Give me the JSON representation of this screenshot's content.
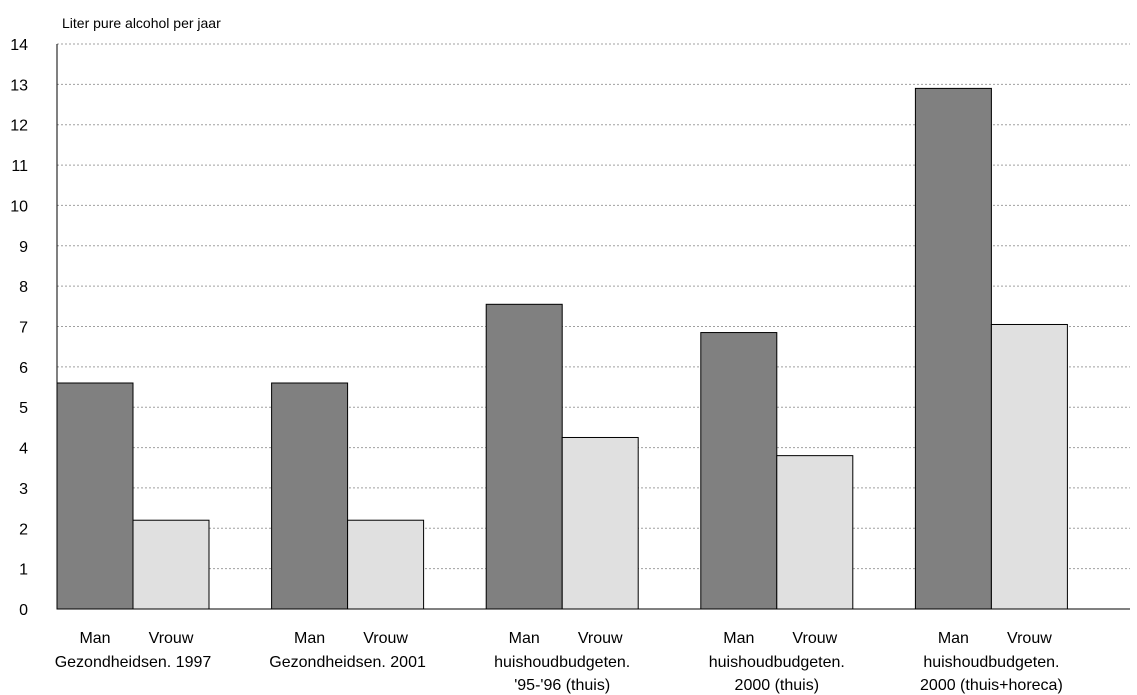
{
  "chart_data": {
    "type": "bar",
    "ylabel": "Liter pure alcohol per jaar",
    "ylim": [
      0,
      14
    ],
    "yticks": [
      "0",
      "1",
      "2",
      "3",
      "4",
      "5",
      "6",
      "7",
      "8",
      "9",
      "10",
      "11",
      "12",
      "13",
      "14"
    ],
    "grid": true,
    "series_labels": [
      "Man",
      "Vrouw"
    ],
    "colors": [
      "#808080",
      "#e0e0e0"
    ],
    "groups": [
      {
        "label_lines": [
          "Gezondheidsen. 1997"
        ],
        "values": [
          5.6,
          2.2
        ]
      },
      {
        "label_lines": [
          "Gezondheidsen. 2001"
        ],
        "values": [
          5.6,
          2.2
        ]
      },
      {
        "label_lines": [
          "huishoudbudgeten.",
          "'95-'96 (thuis)"
        ],
        "values": [
          7.55,
          4.25
        ]
      },
      {
        "label_lines": [
          "huishoudbudgeten.",
          "2000 (thuis)"
        ],
        "values": [
          6.85,
          3.8
        ]
      },
      {
        "label_lines": [
          "huishoudbudgeten.",
          "2000 (thuis+horeca)"
        ],
        "values": [
          12.9,
          7.05
        ]
      }
    ]
  }
}
